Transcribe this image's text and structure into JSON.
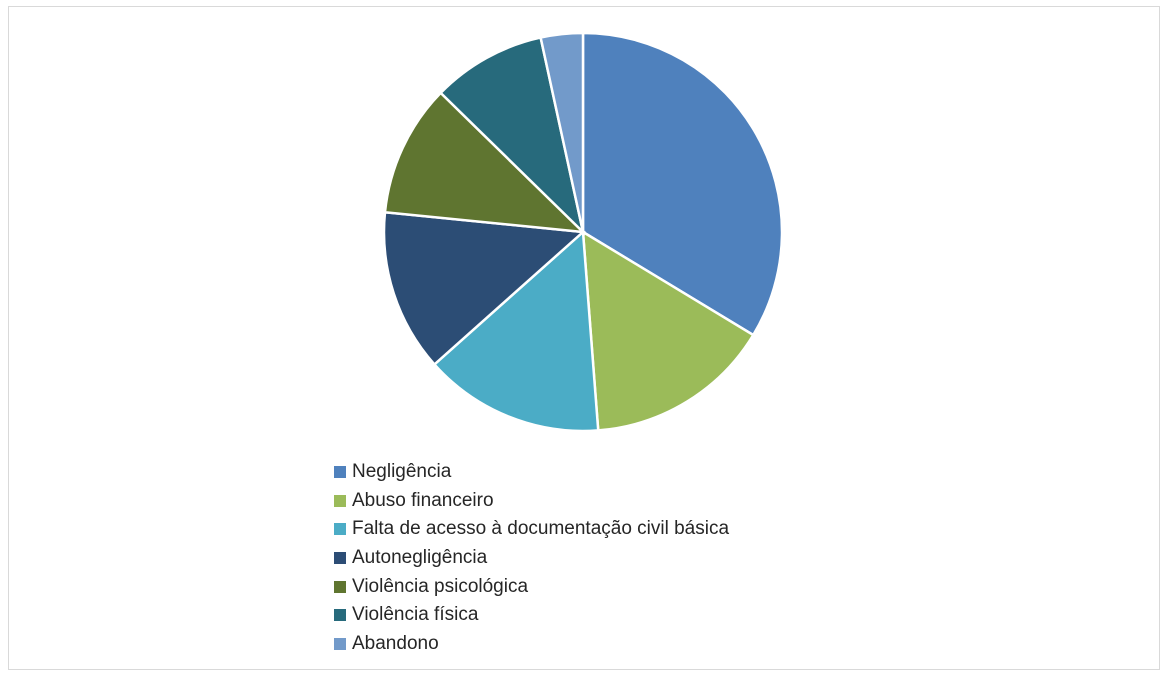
{
  "chart_data": {
    "type": "pie",
    "title": "",
    "categories": [
      "Negligência",
      "Abuso financeiro",
      "Falta de acesso à documentação civil básica",
      "Autonegligência",
      "Violência psicológica",
      "Violência física",
      "Abandono"
    ],
    "values": [
      34.5,
      15.5,
      15.0,
      13.5,
      11.0,
      9.5,
      3.5
    ],
    "colors": [
      "#4f81bd",
      "#9bbb59",
      "#4bacc6",
      "#2c4d75",
      "#5f7530",
      "#276a7c",
      "#729aca"
    ],
    "legend_position": "bottom-left"
  }
}
